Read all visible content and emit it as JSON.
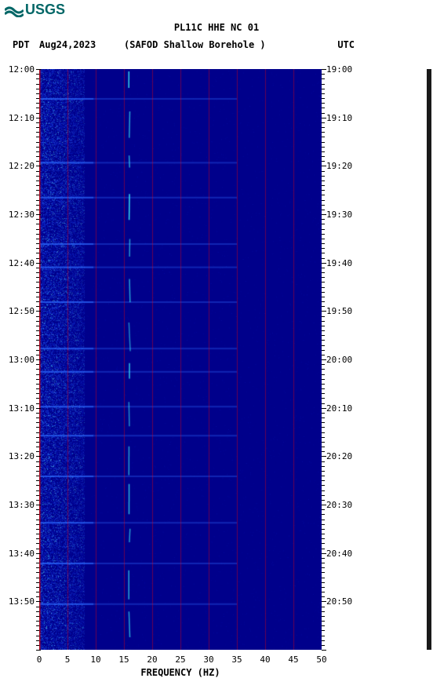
{
  "logo_text": "USGS",
  "title_line1": "PL11C HHE NC 01",
  "subtitle": "(SAFOD Shallow Borehole )",
  "date": "Aug24,2023",
  "tz_left": "PDT",
  "tz_right": "UTC",
  "x_axis_title": "FREQUENCY (HZ)",
  "chart": {
    "type": "spectrogram",
    "xlim": [
      0,
      50
    ],
    "x_ticks": [
      0,
      5,
      10,
      15,
      20,
      25,
      30,
      35,
      40,
      45,
      50
    ],
    "y_left_labels": [
      "12:00",
      "12:10",
      "12:20",
      "12:30",
      "12:40",
      "12:50",
      "13:00",
      "13:10",
      "13:20",
      "13:30",
      "13:40",
      "13:50"
    ],
    "y_right_labels": [
      "19:00",
      "19:10",
      "19:20",
      "19:30",
      "19:40",
      "19:50",
      "20:00",
      "20:10",
      "20:20",
      "20:30",
      "20:40",
      "20:50"
    ],
    "y_count": 12,
    "background_color": "#0000cc",
    "grid_color": "rgba(255,0,0,0.4)",
    "low_freq_band": {
      "start": 0,
      "end": 8,
      "color_variance": "#1a4fff"
    },
    "spectral_line_hz": 16,
    "spectral_line_color": "#3fffff",
    "palette": {
      "dark": "#00008b",
      "mid": "#0b2bdb",
      "bright": "#2d6bff",
      "cyan": "#3bd6ff",
      "hot": "#7fffff"
    }
  }
}
